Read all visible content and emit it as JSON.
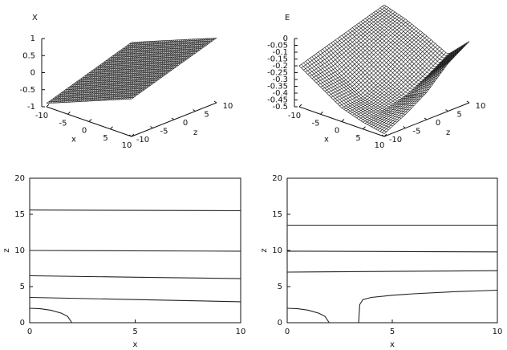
{
  "chart_data": [
    {
      "type": "surface",
      "title": "X",
      "xlabel": "x",
      "ylabel": "z",
      "xlim": [
        -10,
        10
      ],
      "xticks": [
        -10,
        -5,
        0,
        5,
        10
      ],
      "ylim": [
        -10,
        10
      ],
      "yticks": [
        -10,
        -5,
        0,
        5,
        10
      ],
      "vlim": [
        -1,
        1
      ],
      "vticks": [
        1,
        0.5,
        0,
        -0.5,
        -1
      ],
      "grid_x": [
        -10,
        -5,
        0,
        5,
        10
      ],
      "grid_y": [
        -10,
        -5,
        0,
        5,
        10
      ],
      "values": [
        [
          -0.9,
          -0.65,
          -0.4,
          -0.15,
          0.1
        ],
        [
          -0.7,
          -0.45,
          -0.2,
          0.05,
          0.3
        ],
        [
          -0.5,
          -0.25,
          0,
          0.25,
          0.5
        ],
        [
          -0.3,
          -0.05,
          0.2,
          0.45,
          0.7
        ],
        [
          -0.1,
          0.15,
          0.4,
          0.65,
          0.9
        ]
      ],
      "color": "#111111"
    },
    {
      "type": "surface",
      "title": "E",
      "xlabel": "x",
      "ylabel": "z",
      "xlim": [
        -10,
        10
      ],
      "xticks": [
        -10,
        -5,
        0,
        5,
        10
      ],
      "ylim": [
        -10,
        10
      ],
      "yticks": [
        -10,
        -5,
        0,
        5,
        10
      ],
      "vlim": [
        -0.5,
        0
      ],
      "vticks": [
        0,
        -0.05,
        -0.1,
        -0.15,
        -0.2,
        -0.25,
        -0.3,
        -0.35,
        -0.4,
        -0.45,
        -0.5
      ],
      "grid_x": [
        -10,
        -5,
        0,
        5,
        10
      ],
      "grid_y": [
        -10,
        -5,
        0,
        5,
        10
      ],
      "values": [
        [
          -0.2,
          -0.3,
          -0.4,
          -0.45,
          -0.48
        ],
        [
          -0.15,
          -0.28,
          -0.38,
          -0.42,
          -0.4
        ],
        [
          -0.1,
          -0.2,
          -0.3,
          -0.38,
          -0.3
        ],
        [
          -0.05,
          -0.12,
          -0.2,
          -0.3,
          -0.15
        ],
        [
          0,
          -0.05,
          -0.12,
          -0.2,
          -0.05
        ]
      ],
      "color": "#111111"
    },
    {
      "type": "line",
      "xlabel": "x",
      "ylabel": "z",
      "xlim": [
        0,
        10
      ],
      "xticks": [
        0,
        5,
        10
      ],
      "ylim": [
        0,
        20
      ],
      "yticks": [
        0,
        5,
        10,
        15,
        20
      ],
      "series": [
        {
          "color": "#222222",
          "x": [
            0,
            10
          ],
          "values": [
            15.6,
            15.5
          ]
        },
        {
          "color": "#222222",
          "x": [
            0,
            10
          ],
          "values": [
            10,
            9.9
          ]
        },
        {
          "color": "#222222",
          "x": [
            0,
            5,
            10
          ],
          "values": [
            6.5,
            6.3,
            6.1
          ]
        },
        {
          "color": "#222222",
          "x": [
            0,
            5,
            10
          ],
          "values": [
            3.5,
            3.2,
            2.9
          ]
        },
        {
          "color": "#222222",
          "x": [
            0,
            0.5,
            1,
            1.5,
            1.8,
            2
          ],
          "values": [
            2,
            1.94,
            1.73,
            1.32,
            0.87,
            0
          ]
        }
      ]
    },
    {
      "type": "line",
      "xlabel": "x",
      "ylabel": "z",
      "xlim": [
        0,
        10
      ],
      "xticks": [
        0,
        5,
        10
      ],
      "ylim": [
        0,
        20
      ],
      "yticks": [
        0,
        5,
        10,
        15,
        20
      ],
      "series": [
        {
          "color": "#222222",
          "x": [
            0,
            10
          ],
          "values": [
            13.5,
            13.5
          ]
        },
        {
          "color": "#222222",
          "x": [
            0,
            10
          ],
          "values": [
            9.9,
            9.8
          ]
        },
        {
          "color": "#222222",
          "x": [
            0,
            5,
            10
          ],
          "values": [
            7,
            7.1,
            7.2
          ]
        },
        {
          "color": "#222222",
          "x": [
            3.4,
            3.45,
            3.6,
            4,
            5,
            6,
            8,
            10
          ],
          "values": [
            0,
            2.5,
            3.2,
            3.5,
            3.8,
            4,
            4.3,
            4.5
          ]
        },
        {
          "color": "#222222",
          "x": [
            0,
            0.5,
            1,
            1.5,
            1.8,
            2
          ],
          "values": [
            2,
            1.94,
            1.73,
            1.32,
            0.87,
            0
          ]
        }
      ]
    }
  ]
}
